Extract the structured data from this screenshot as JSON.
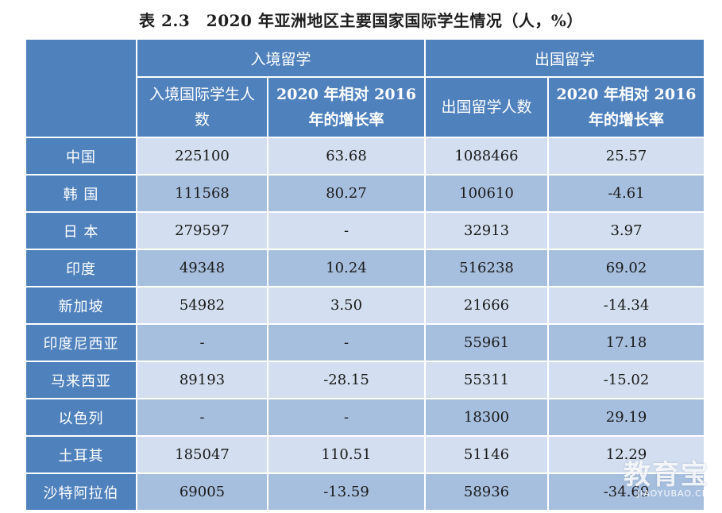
{
  "title": "表 2.3　2020 年亚洲地区主要国家国际学生情况（人，%）",
  "header": {
    "group_inbound": "入境留学",
    "group_outbound": "出国留学",
    "col_inbound_count": "入境国际学生人数",
    "col_inbound_growth": "2020 年相对 2016 年的增长率",
    "col_outbound_count": "出国留学人数",
    "col_outbound_growth": "2020 年相对 2016 年的增长率"
  },
  "rows": [
    {
      "country": "中国",
      "inbound": "225100",
      "inbound_growth": "63.68",
      "outbound": "1088466",
      "outbound_growth": "25.57"
    },
    {
      "country": "韩 国",
      "inbound": "111568",
      "inbound_growth": "80.27",
      "outbound": "100610",
      "outbound_growth": "-4.61"
    },
    {
      "country": "日 本",
      "inbound": "279597",
      "inbound_growth": "-",
      "outbound": "32913",
      "outbound_growth": "3.97"
    },
    {
      "country": "印度",
      "inbound": "49348",
      "inbound_growth": "10.24",
      "outbound": "516238",
      "outbound_growth": "69.02"
    },
    {
      "country": "新加坡",
      "inbound": "54982",
      "inbound_growth": "3.50",
      "outbound": "21666",
      "outbound_growth": "-14.34"
    },
    {
      "country": "印度尼西亚",
      "inbound": "-",
      "inbound_growth": "-",
      "outbound": "55961",
      "outbound_growth": "17.18"
    },
    {
      "country": "马来西亚",
      "inbound": "89193",
      "inbound_growth": "-28.15",
      "outbound": "55311",
      "outbound_growth": "-15.02"
    },
    {
      "country": "以色列",
      "inbound": "-",
      "inbound_growth": "-",
      "outbound": "18300",
      "outbound_growth": "29.19"
    },
    {
      "country": "土耳其",
      "inbound": "185047",
      "inbound_growth": "110.51",
      "outbound": "51146",
      "outbound_growth": "12.29"
    },
    {
      "country": "沙特阿拉伯",
      "inbound": "69005",
      "inbound_growth": "-13.59",
      "outbound": "58936",
      "outbound_growth": "-34.69"
    }
  ],
  "colors": {
    "header": "#4f81bd",
    "row_light": "#d3dff0",
    "row_dark": "#a7bfdf"
  },
  "watermark": {
    "cn": "教育宝",
    "en": "JIAOYUBAO.CN"
  }
}
